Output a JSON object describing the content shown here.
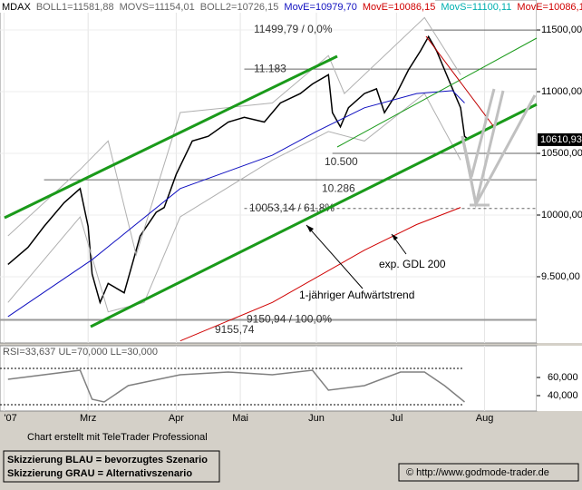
{
  "chart_data": [
    {
      "type": "line",
      "xlim": [
        -1,
        133
      ],
      "ylim": [
        8963,
        11743
      ],
      "xticks": [
        {
          "value": 0,
          "label": "'07"
        },
        {
          "value": 21,
          "label": "Mrz"
        },
        {
          "value": 43,
          "label": "Apr"
        },
        {
          "value": 59,
          "label": "Mai"
        },
        {
          "value": 78,
          "label": "Jun"
        },
        {
          "value": 98,
          "label": "Jul"
        },
        {
          "value": 120,
          "label": "Aug"
        }
      ],
      "yticks": [
        {
          "value": 11500,
          "label": "11500,00"
        },
        {
          "value": 11000,
          "label": "11000,00"
        },
        {
          "value": 10500,
          "label": "10500,00"
        },
        {
          "value": 10000,
          "label": "10000,00"
        },
        {
          "value": 9500,
          "label": "9.500,00"
        }
      ],
      "grid": true,
      "header": [
        "MOVS=11154,01",
        "MovS=11100,11",
        "MovE=10086,15"
      ],
      "series": [
        {
          "name": "MDAX",
          "color": "#000000",
          "x": [
            1,
            6,
            10,
            15,
            19,
            21,
            22,
            24,
            26,
            30,
            32,
            34,
            38,
            40,
            43,
            47,
            51,
            56,
            60,
            65,
            69,
            74,
            77,
            81,
            82,
            84,
            86,
            90,
            93,
            95,
            98,
            101,
            104,
            106,
            108,
            110,
            112,
            114,
            115,
            116
          ],
          "values": [
            9600,
            9738,
            9908,
            10100,
            10215,
            9908,
            9523,
            9292,
            9446,
            9370,
            9600,
            9830,
            10023,
            10061,
            10330,
            10600,
            10638,
            10754,
            10792,
            10754,
            10908,
            10985,
            11062,
            11138,
            10830,
            10715,
            10870,
            10985,
            11023,
            10830,
            10985,
            11177,
            11331,
            11446,
            11331,
            11177,
            11023,
            10869,
            10638,
            10611
          ]
        },
        {
          "name": "BOLL1=11581,88",
          "color": "#b0b0b0",
          "x": [
            1,
            19,
            26,
            33,
            44,
            67,
            81,
            85,
            105,
            114
          ],
          "values": [
            9831,
            10369,
            10600,
            9677,
            10831,
            10908,
            11292,
            10985,
            11600,
            11138
          ]
        },
        {
          "name": "BOLL2=10726,15",
          "color": "#b0b0b0",
          "x": [
            1,
            19,
            26,
            35,
            44,
            67,
            81,
            90,
            105,
            114
          ],
          "values": [
            9292,
            9985,
            9215,
            9292,
            9985,
            10446,
            10677,
            10600,
            10985,
            10446
          ]
        },
        {
          "name": "MovE=10979,70",
          "color": "#1010c0",
          "x": [
            1,
            22,
            44,
            67,
            78,
            90,
            103,
            112,
            115
          ],
          "values": [
            9177,
            9638,
            10215,
            10485,
            10677,
            10869,
            10985,
            11008,
            10908
          ]
        },
        {
          "name": "MovE=10086,15",
          "color": "#d00000",
          "x": [
            44,
            67,
            90,
            103,
            114
          ],
          "values": [
            8980,
            9292,
            9715,
            9923,
            10062
          ]
        }
      ],
      "levels": [
        {
          "value": 11499.79,
          "label": "11499,79 / 0,0%",
          "x_from": 105,
          "dash": false
        },
        {
          "value": 11183,
          "label": "11.183",
          "x_from": 60,
          "dash": false
        },
        {
          "value": 10500,
          "label": "10.500",
          "x_from": 82,
          "dash": false
        },
        {
          "value": 10286,
          "label": "10.286",
          "x_from": 10,
          "dash": false
        },
        {
          "value": 10053.14,
          "label": "10053,14 / 61,8%",
          "x_from": 60,
          "dash": true
        },
        {
          "value": 9150.94,
          "label": "9150,94 / 100,0%",
          "x_from": -1,
          "dash": false
        }
      ],
      "low_label": {
        "value": 9155.74,
        "label": "9155,74"
      },
      "last_price": {
        "value": 10610.93,
        "label": "10610,93"
      },
      "annotations": [
        "exp. GDL 200",
        "1-jähriger Aufwärtstrend"
      ]
    },
    {
      "type": "line",
      "title": "RSI=33,637 UL=70,000 LL=30,000",
      "ylim": [
        23,
        95
      ],
      "yticks": [
        {
          "value": 60,
          "label": "60,000"
        },
        {
          "value": 40,
          "label": "40,000"
        }
      ],
      "ul": 70,
      "ll": 30,
      "series": [
        {
          "name": "RSI",
          "color": "#808080",
          "x": [
            1,
            19,
            22,
            25,
            31,
            44,
            56,
            67,
            77,
            81,
            90,
            99,
            105,
            110,
            115
          ],
          "values": [
            58,
            68,
            36,
            33,
            51,
            63,
            66,
            63,
            68,
            46,
            51,
            66,
            66,
            51,
            33
          ]
        }
      ]
    }
  ],
  "footer": {
    "credit": "Chart erstellt mit TeleTrader Professional",
    "scenario_blue": "Skizzierung BLAU = bevorzugtes Szenario",
    "scenario_grey": "Skizzierung GRAU = Alternativszenario",
    "source": "© http://www.godmode-trader.de"
  }
}
